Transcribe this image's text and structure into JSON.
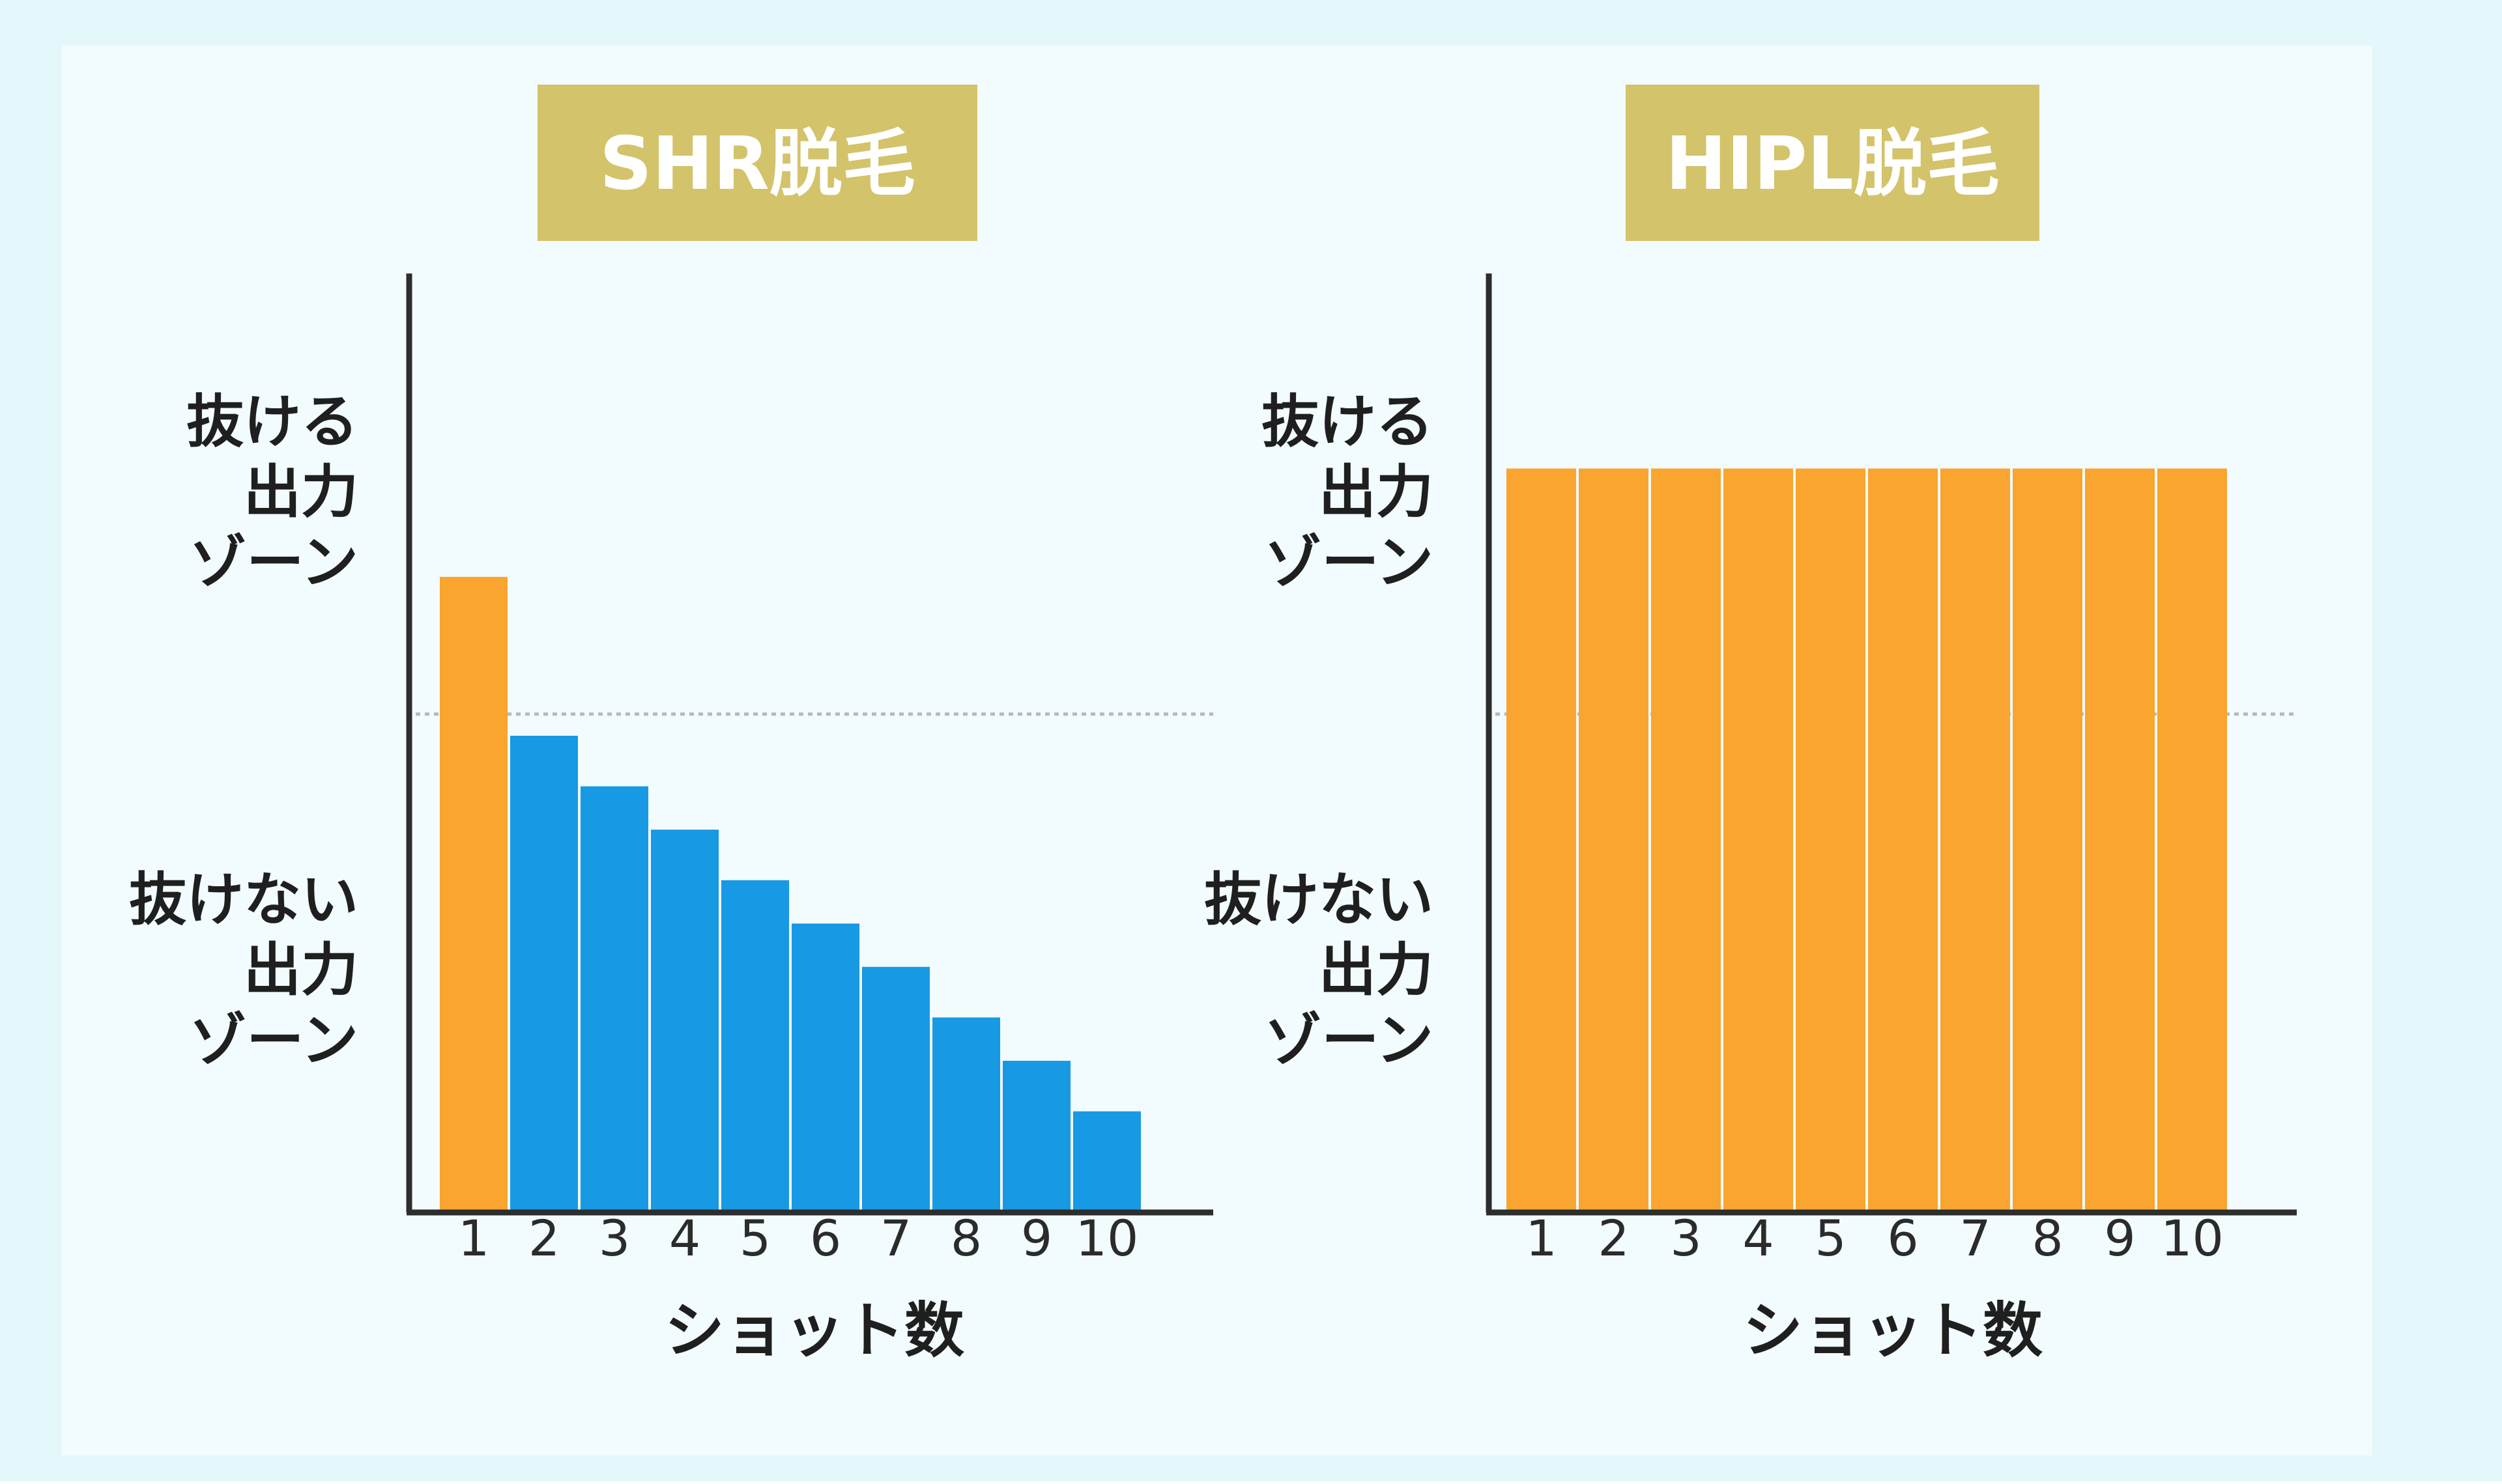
{
  "colors": {
    "panel_bg": "#f2fbfd",
    "page_edge": "#e4f8fb",
    "title_bg": "#d3c36a",
    "title_text": "#ffffff",
    "bar_effective": "#f9a52f",
    "bar_ineffective": "#1799e3",
    "axis": "#2d2d2d",
    "threshold_line": "#b9b9b9",
    "text": "#1f1f1f"
  },
  "chart_data": [
    {
      "type": "bar",
      "title": "SHR脱毛",
      "categories": [
        "1",
        "2",
        "3",
        "4",
        "5",
        "6",
        "7",
        "8",
        "9",
        "10"
      ],
      "values": [
        88,
        66,
        59,
        53,
        46,
        40,
        34,
        27,
        21,
        14
      ],
      "bar_colors": [
        "#f9a52f",
        "#1799e3",
        "#1799e3",
        "#1799e3",
        "#1799e3",
        "#1799e3",
        "#1799e3",
        "#1799e3",
        "#1799e3",
        "#1799e3"
      ],
      "threshold": 69,
      "ylim": [
        0,
        130
      ],
      "xlabel": "ショット数",
      "zone_labels": {
        "upper": [
          "抜ける",
          "出力",
          "ゾーン"
        ],
        "lower": [
          "抜けない",
          "出力",
          "ゾーン"
        ]
      },
      "ylabel": "",
      "grid": false,
      "legend": "none"
    },
    {
      "type": "bar",
      "title": "HIPL脱毛",
      "categories": [
        "1",
        "2",
        "3",
        "4",
        "5",
        "6",
        "7",
        "8",
        "9",
        "10"
      ],
      "values": [
        103,
        103,
        103,
        103,
        103,
        103,
        103,
        103,
        103,
        103
      ],
      "bar_colors": [
        "#f9a52f",
        "#f9a52f",
        "#f9a52f",
        "#f9a52f",
        "#f9a52f",
        "#f9a52f",
        "#f9a52f",
        "#f9a52f",
        "#f9a52f",
        "#f9a52f"
      ],
      "threshold": 69,
      "ylim": [
        0,
        130
      ],
      "xlabel": "ショット数",
      "zone_labels": {
        "upper": [
          "抜ける",
          "出力",
          "ゾーン"
        ],
        "lower": [
          "抜けない",
          "出力",
          "ゾーン"
        ]
      },
      "ylabel": "",
      "grid": false,
      "legend": "none"
    }
  ]
}
